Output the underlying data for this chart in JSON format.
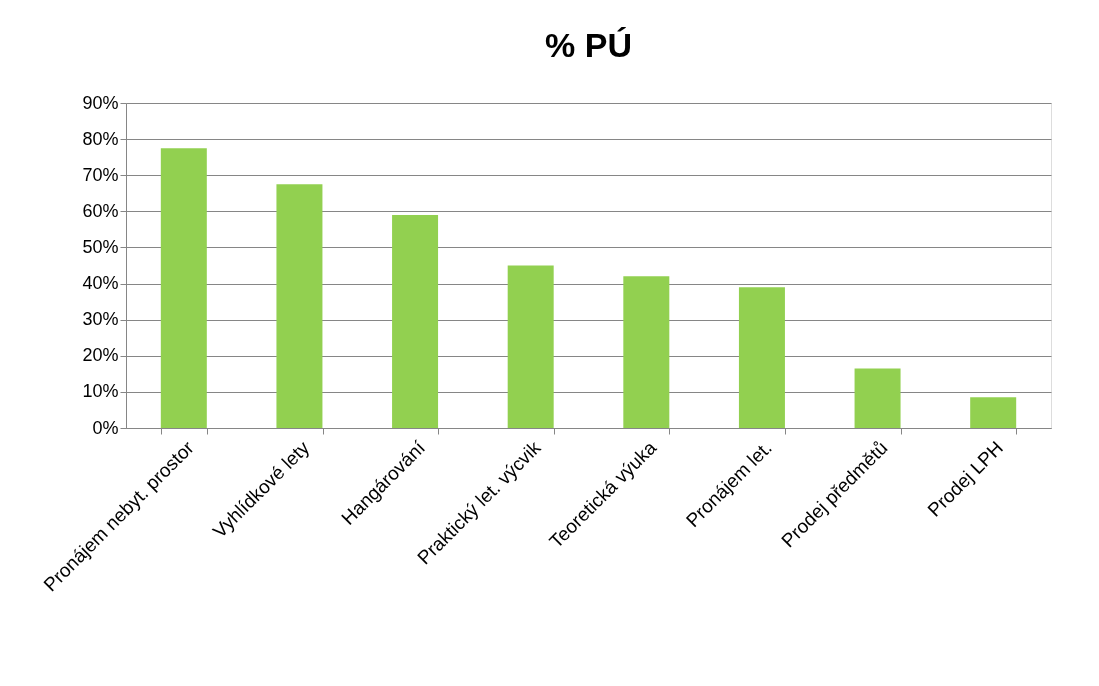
{
  "chart_data": {
    "type": "bar",
    "title": "% PÚ",
    "categories": [
      "Pronájem nebyt. prostor",
      "Vyhlídkové lety",
      "Hangárování",
      "Praktický let. výcvik",
      "Teoretická výuka",
      "Pronájem let.",
      "Prodej předmětů",
      "Prodej LPH"
    ],
    "values": [
      77.5,
      67.5,
      59,
      45,
      42,
      39,
      16.5,
      8.5
    ],
    "color": "#92d050",
    "ylim": [
      0,
      90
    ],
    "yticks": [
      {
        "value": 0,
        "label": "0%"
      },
      {
        "value": 10,
        "label": "10%"
      },
      {
        "value": 20,
        "label": "20%"
      },
      {
        "value": 30,
        "label": "30%"
      },
      {
        "value": 40,
        "label": "40%"
      },
      {
        "value": 50,
        "label": "50%"
      },
      {
        "value": 60,
        "label": "60%"
      },
      {
        "value": 70,
        "label": "70%"
      },
      {
        "value": 80,
        "label": "80%"
      },
      {
        "value": 90,
        "label": "90%"
      }
    ],
    "grid": "y"
  }
}
